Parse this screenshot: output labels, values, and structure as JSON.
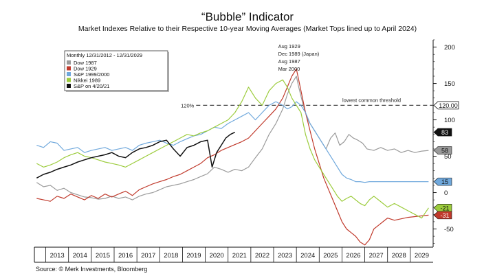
{
  "chart_data": {
    "type": "line",
    "title": "“Bubble” Indicator",
    "subtitle": "Market Indexes Relative to their Respective 10-year Moving Averages (Market Tops lined up to April 2024)",
    "source": "Source: © Merk Investments, Bloomberg",
    "x_ticks": [
      "2013",
      "2014",
      "2015",
      "2016",
      "2017",
      "2018",
      "2019",
      "2020",
      "2021",
      "2022",
      "2023",
      "2024",
      "2025",
      "2026",
      "2027",
      "2028",
      "2029"
    ],
    "xlim": [
      2012.5,
      2030.0
    ],
    "y_ticks": [
      200,
      150,
      100,
      50,
      0,
      -50
    ],
    "ylim": [
      -75,
      210
    ],
    "grid": false,
    "legend_placement": "top-left",
    "legend_title": "Monthly 12/31/2012 - 12/31/2029",
    "top_annotations": [
      {
        "text": "Aug 1929",
        "color": "#c0392b"
      },
      {
        "text": "Dec 1989 (Japan)",
        "color": "#9ccc3c"
      },
      {
        "text": "Aug 1987",
        "color": "#8c8c8c"
      },
      {
        "text": "Mar 2000",
        "color": "#6fa8dc"
      }
    ],
    "threshold": {
      "value": 120,
      "left_label": "120%",
      "right_label": "lowest common threshold",
      "badge": "120.00"
    },
    "series": [
      {
        "name": "Dow 1987",
        "color": "#9a9a9a",
        "x": [
          2012.6,
          2012.9,
          2013.2,
          2013.5,
          2013.8,
          2014.1,
          2014.4,
          2014.7,
          2015.0,
          2015.3,
          2015.6,
          2015.9,
          2016.2,
          2016.5,
          2016.8,
          2017.1,
          2017.4,
          2017.7,
          2018.0,
          2018.3,
          2018.6,
          2018.9,
          2019.2,
          2019.5,
          2019.8,
          2020.1,
          2020.4,
          2020.7,
          2021.0,
          2021.3,
          2021.6,
          2021.9,
          2022.2,
          2022.5,
          2022.8,
          2023.1,
          2023.4,
          2023.6,
          2023.8,
          2024.0,
          2024.1,
          2024.3,
          2024.5,
          2024.7,
          2024.9,
          2025.1,
          2025.3,
          2025.5,
          2025.7,
          2025.9,
          2026.1,
          2026.3,
          2026.5,
          2026.7,
          2026.9,
          2027.1,
          2027.4,
          2027.7,
          2028.0,
          2028.3,
          2028.6,
          2028.9,
          2029.2,
          2029.5,
          2029.8
        ],
        "y": [
          14,
          8,
          10,
          3,
          6,
          0,
          -3,
          -6,
          -7,
          -9,
          -8,
          -5,
          -8,
          -6,
          -10,
          -5,
          -2,
          0,
          4,
          8,
          10,
          12,
          15,
          18,
          22,
          26,
          35,
          32,
          28,
          32,
          30,
          35,
          48,
          60,
          80,
          95,
          115,
          135,
          150,
          160,
          145,
          120,
          100,
          90,
          80,
          70,
          60,
          75,
          82,
          65,
          70,
          80,
          75,
          72,
          68,
          60,
          58,
          62,
          58,
          60,
          55,
          58,
          55,
          57,
          58
        ]
      },
      {
        "name": "Dow 1929",
        "color": "#c0392b",
        "x": [
          2012.6,
          2012.9,
          2013.2,
          2013.5,
          2013.8,
          2014.1,
          2014.4,
          2014.7,
          2015.0,
          2015.3,
          2015.6,
          2015.9,
          2016.2,
          2016.5,
          2016.8,
          2017.1,
          2017.4,
          2017.7,
          2018.0,
          2018.3,
          2018.6,
          2018.9,
          2019.2,
          2019.5,
          2019.8,
          2020.1,
          2020.4,
          2020.7,
          2021.0,
          2021.3,
          2021.6,
          2021.9,
          2022.2,
          2022.5,
          2022.8,
          2023.1,
          2023.4,
          2023.6,
          2023.8,
          2024.0,
          2024.2,
          2024.4,
          2024.6,
          2024.8,
          2025.0,
          2025.2,
          2025.4,
          2025.6,
          2025.8,
          2026.0,
          2026.2,
          2026.4,
          2026.6,
          2026.8,
          2027.0,
          2027.2,
          2027.4,
          2027.6,
          2027.8,
          2028.0,
          2028.3,
          2028.6,
          2028.9,
          2029.2,
          2029.5,
          2029.8
        ],
        "y": [
          -8,
          -10,
          -12,
          -5,
          -8,
          -2,
          -6,
          -10,
          -4,
          -8,
          -2,
          -6,
          -2,
          2,
          -4,
          4,
          8,
          12,
          15,
          18,
          22,
          25,
          30,
          35,
          40,
          48,
          52,
          58,
          62,
          66,
          70,
          75,
          85,
          95,
          105,
          115,
          130,
          145,
          160,
          170,
          140,
          110,
          85,
          60,
          40,
          20,
          5,
          -10,
          -25,
          -40,
          -50,
          -55,
          -60,
          -68,
          -72,
          -65,
          -50,
          -45,
          -40,
          -35,
          -38,
          -36,
          -34,
          -33,
          -32,
          -31
        ]
      },
      {
        "name": "S&P 1999/2000",
        "color": "#6fa8dc",
        "x": [
          2012.6,
          2012.9,
          2013.2,
          2013.5,
          2013.8,
          2014.1,
          2014.4,
          2014.7,
          2015.0,
          2015.3,
          2015.6,
          2015.9,
          2016.2,
          2016.5,
          2016.8,
          2017.1,
          2017.4,
          2017.7,
          2018.0,
          2018.3,
          2018.6,
          2018.9,
          2019.2,
          2019.5,
          2019.8,
          2020.1,
          2020.4,
          2020.7,
          2021.0,
          2021.3,
          2021.6,
          2021.9,
          2022.2,
          2022.5,
          2022.8,
          2023.1,
          2023.4,
          2023.6,
          2023.8,
          2024.0,
          2024.2,
          2024.4,
          2024.6,
          2024.8,
          2025.0,
          2025.2,
          2025.4,
          2025.6,
          2025.8,
          2026.0,
          2026.2,
          2026.4,
          2026.6,
          2026.8,
          2027.0,
          2027.2,
          2027.4,
          2027.6,
          2027.8,
          2028.0,
          2028.3,
          2028.6,
          2028.9,
          2029.2,
          2029.5,
          2029.8
        ],
        "y": [
          65,
          62,
          70,
          68,
          58,
          60,
          62,
          55,
          58,
          60,
          62,
          58,
          60,
          62,
          58,
          65,
          68,
          70,
          72,
          68,
          65,
          70,
          74,
          78,
          80,
          85,
          90,
          88,
          95,
          100,
          105,
          110,
          100,
          110,
          120,
          125,
          120,
          115,
          118,
          125,
          120,
          110,
          95,
          85,
          75,
          65,
          55,
          45,
          35,
          25,
          20,
          18,
          15,
          15,
          14,
          15,
          15,
          15,
          15,
          15,
          15,
          15,
          15,
          15,
          15,
          15
        ]
      },
      {
        "name": "Nikkei 1989",
        "color": "#9ccc3c",
        "x": [
          2012.6,
          2012.9,
          2013.2,
          2013.5,
          2013.8,
          2014.1,
          2014.4,
          2014.7,
          2015.0,
          2015.3,
          2015.6,
          2015.9,
          2016.2,
          2016.5,
          2016.8,
          2017.1,
          2017.4,
          2017.7,
          2018.0,
          2018.3,
          2018.6,
          2018.9,
          2019.2,
          2019.5,
          2019.8,
          2020.1,
          2020.4,
          2020.7,
          2021.0,
          2021.3,
          2021.6,
          2021.9,
          2022.2,
          2022.5,
          2022.8,
          2023.1,
          2023.4,
          2023.6,
          2023.8,
          2024.0,
          2024.2,
          2024.4,
          2024.6,
          2024.8,
          2025.0,
          2025.2,
          2025.4,
          2025.6,
          2025.8,
          2026.0,
          2026.2,
          2026.4,
          2026.6,
          2026.8,
          2027.0,
          2027.2,
          2027.4,
          2027.6,
          2027.8,
          2028.0,
          2028.3,
          2028.6,
          2028.9,
          2029.2,
          2029.5,
          2029.8
        ],
        "y": [
          40,
          35,
          38,
          42,
          48,
          52,
          55,
          50,
          48,
          45,
          42,
          40,
          38,
          35,
          40,
          45,
          50,
          55,
          60,
          65,
          70,
          75,
          80,
          78,
          82,
          85,
          90,
          95,
          100,
          110,
          125,
          145,
          130,
          120,
          140,
          150,
          155,
          145,
          130,
          120,
          110,
          80,
          60,
          45,
          35,
          25,
          15,
          5,
          -5,
          -12,
          -8,
          -5,
          -10,
          -15,
          -18,
          -10,
          -5,
          -10,
          -15,
          -20,
          -15,
          -20,
          -25,
          -30,
          -35,
          -21
        ]
      },
      {
        "name": "S&P  on 4/20/21",
        "color": "#111111",
        "x": [
          2012.6,
          2012.9,
          2013.2,
          2013.5,
          2013.8,
          2014.1,
          2014.4,
          2014.7,
          2015.0,
          2015.3,
          2015.6,
          2015.9,
          2016.2,
          2016.5,
          2016.8,
          2017.1,
          2017.4,
          2017.7,
          2018.0,
          2018.3,
          2018.6,
          2018.9,
          2019.2,
          2019.5,
          2019.8,
          2020.1,
          2020.3,
          2020.5,
          2020.7,
          2020.9,
          2021.1,
          2021.3
        ],
        "y": [
          20,
          25,
          28,
          32,
          35,
          38,
          42,
          45,
          48,
          50,
          52,
          55,
          50,
          48,
          55,
          60,
          62,
          65,
          70,
          72,
          60,
          50,
          62,
          65,
          70,
          72,
          35,
          55,
          65,
          75,
          80,
          83
        ]
      }
    ],
    "end_badges": [
      {
        "value": "83",
        "series": "S&P  on 4/20/21",
        "color": "#111111",
        "text_color": "#ffffff",
        "y": 83
      },
      {
        "value": "58",
        "series": "Dow 1987",
        "color": "#9a9a9a",
        "text_color": "#111111",
        "y": 58
      },
      {
        "value": "15",
        "series": "S&P 1999/2000",
        "color": "#6fa8dc",
        "text_color": "#111111",
        "y": 15
      },
      {
        "value": "-21",
        "series": "Nikkei 1989",
        "color": "#9ccc3c",
        "text_color": "#111111",
        "y": -21
      },
      {
        "value": "-31",
        "series": "Dow 1929",
        "color": "#c0392b",
        "text_color": "#ffffff",
        "y": -31
      }
    ]
  }
}
